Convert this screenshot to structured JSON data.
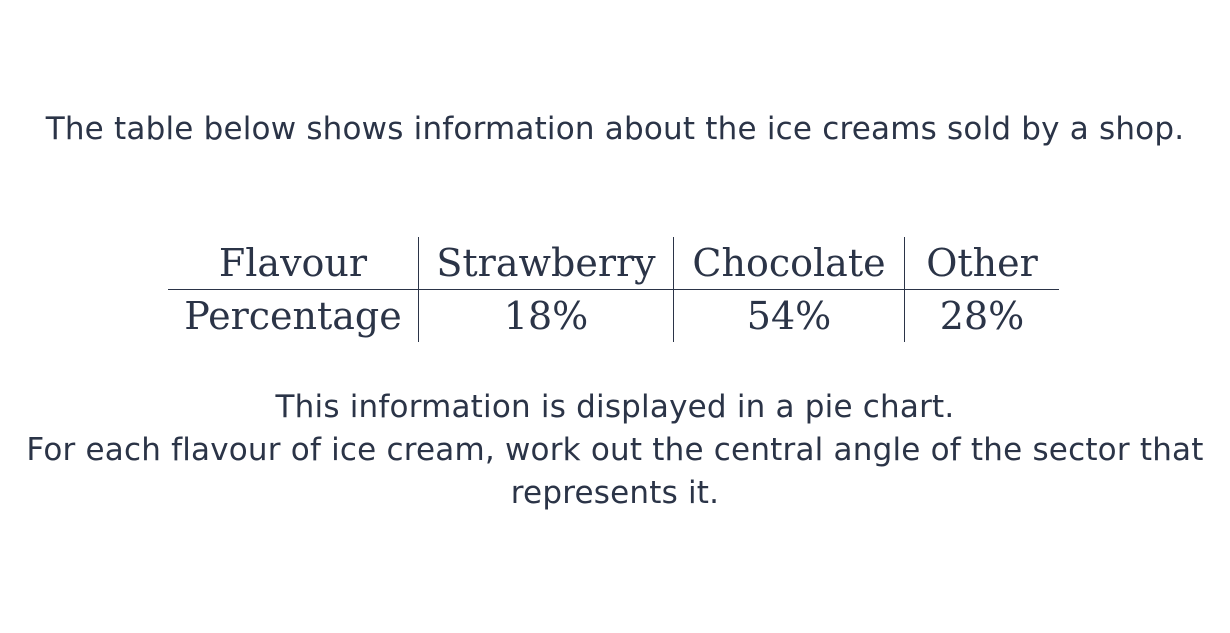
{
  "question": {
    "intro": "The table below shows information about the ice creams sold by a shop.",
    "table": {
      "header": [
        "Flavour",
        "Strawberry",
        "Chocolate",
        "Other"
      ],
      "row": [
        "Percentage",
        "18%",
        "54%",
        "28%"
      ]
    },
    "line1": "This information is displayed in a pie chart.",
    "line2": "For each flavour of ice cream, work out the central angle of the sector that represents it."
  }
}
